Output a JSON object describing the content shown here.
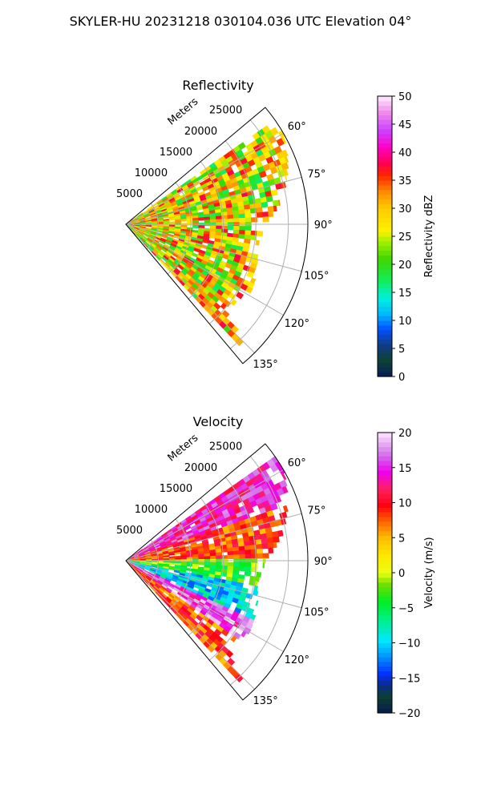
{
  "figure": {
    "suptitle": "SKYLER-HU  20231218  030104.036 UTC Elevation 04°"
  },
  "chart_data": [
    {
      "type": "heatmap",
      "projection": "polar-sector",
      "title": "Reflectivity",
      "radial_label": "Meters",
      "radial_ticks": [
        5000,
        10000,
        15000,
        20000,
        25000
      ],
      "radial_tick_labels": [
        "5000",
        "10000",
        "15000",
        "20000",
        "25000"
      ],
      "rlim": [
        0,
        28000
      ],
      "theta_range_deg": [
        50,
        140
      ],
      "theta_ticks": [
        60,
        75,
        90,
        105,
        120,
        135
      ],
      "theta_tick_labels": [
        "60°",
        "75°",
        "90°",
        "105°",
        "120°",
        "135°"
      ],
      "grid": true,
      "colorbar": {
        "label": "Reflectivity dBZ",
        "range": [
          0,
          50
        ],
        "ticks": [
          0,
          5,
          10,
          15,
          20,
          25,
          30,
          35,
          40,
          45,
          50
        ],
        "tick_labels": [
          "0",
          "5",
          "10",
          "15",
          "20",
          "25",
          "30",
          "35",
          "40",
          "45",
          "50"
        ]
      },
      "typical_range": [
        15,
        38
      ],
      "echo_extent": [
        {
          "azimuth": 60,
          "max_range": 28000
        },
        {
          "azimuth": 70,
          "max_range": 26500
        },
        {
          "azimuth": 80,
          "max_range": 24500
        },
        {
          "azimuth": 90,
          "max_range": 21500
        },
        {
          "azimuth": 100,
          "max_range": 20500
        },
        {
          "azimuth": 110,
          "max_range": 21500
        },
        {
          "azimuth": 120,
          "max_range": 22000
        },
        {
          "azimuth": 130,
          "max_range": 20000
        },
        {
          "azimuth": 137,
          "max_range": 26500
        }
      ]
    },
    {
      "type": "heatmap",
      "projection": "polar-sector",
      "title": "Velocity",
      "radial_label": "Meters",
      "radial_ticks": [
        5000,
        10000,
        15000,
        20000,
        25000
      ],
      "radial_tick_labels": [
        "5000",
        "10000",
        "15000",
        "20000",
        "25000"
      ],
      "rlim": [
        0,
        28000
      ],
      "theta_range_deg": [
        50,
        140
      ],
      "theta_ticks": [
        60,
        75,
        90,
        105,
        120,
        135
      ],
      "theta_tick_labels": [
        "60°",
        "75°",
        "90°",
        "105°",
        "120°",
        "135°"
      ],
      "grid": true,
      "colorbar": {
        "label": "Velocity (m/s)",
        "range": [
          -20,
          20
        ],
        "ticks": [
          -20,
          -15,
          -10,
          -5,
          0,
          5,
          10,
          15,
          20
        ],
        "tick_labels": [
          "−20",
          "−15",
          "−10",
          "−5",
          "0",
          "5",
          "10",
          "15",
          "20"
        ]
      },
      "typical_range": [
        -12,
        14
      ],
      "velocity_pattern": [
        {
          "azimuth_range": [
            55,
            70
          ],
          "velocity": 14
        },
        {
          "azimuth_range": [
            70,
            88
          ],
          "velocity": 8
        },
        {
          "azimuth_range": [
            88,
            100
          ],
          "velocity": -3
        },
        {
          "azimuth_range": [
            100,
            115
          ],
          "velocity": -10
        },
        {
          "azimuth_range": [
            115,
            125
          ],
          "velocity": 16
        },
        {
          "azimuth_range": [
            125,
            137
          ],
          "velocity": 8
        }
      ],
      "echo_extent": [
        {
          "azimuth": 60,
          "max_range": 28000
        },
        {
          "azimuth": 70,
          "max_range": 26500
        },
        {
          "azimuth": 80,
          "max_range": 24500
        },
        {
          "azimuth": 90,
          "max_range": 21500
        },
        {
          "azimuth": 100,
          "max_range": 20500
        },
        {
          "azimuth": 110,
          "max_range": 21500
        },
        {
          "azimuth": 120,
          "max_range": 22000
        },
        {
          "azimuth": 130,
          "max_range": 20000
        },
        {
          "azimuth": 137,
          "max_range": 26500
        }
      ]
    }
  ]
}
